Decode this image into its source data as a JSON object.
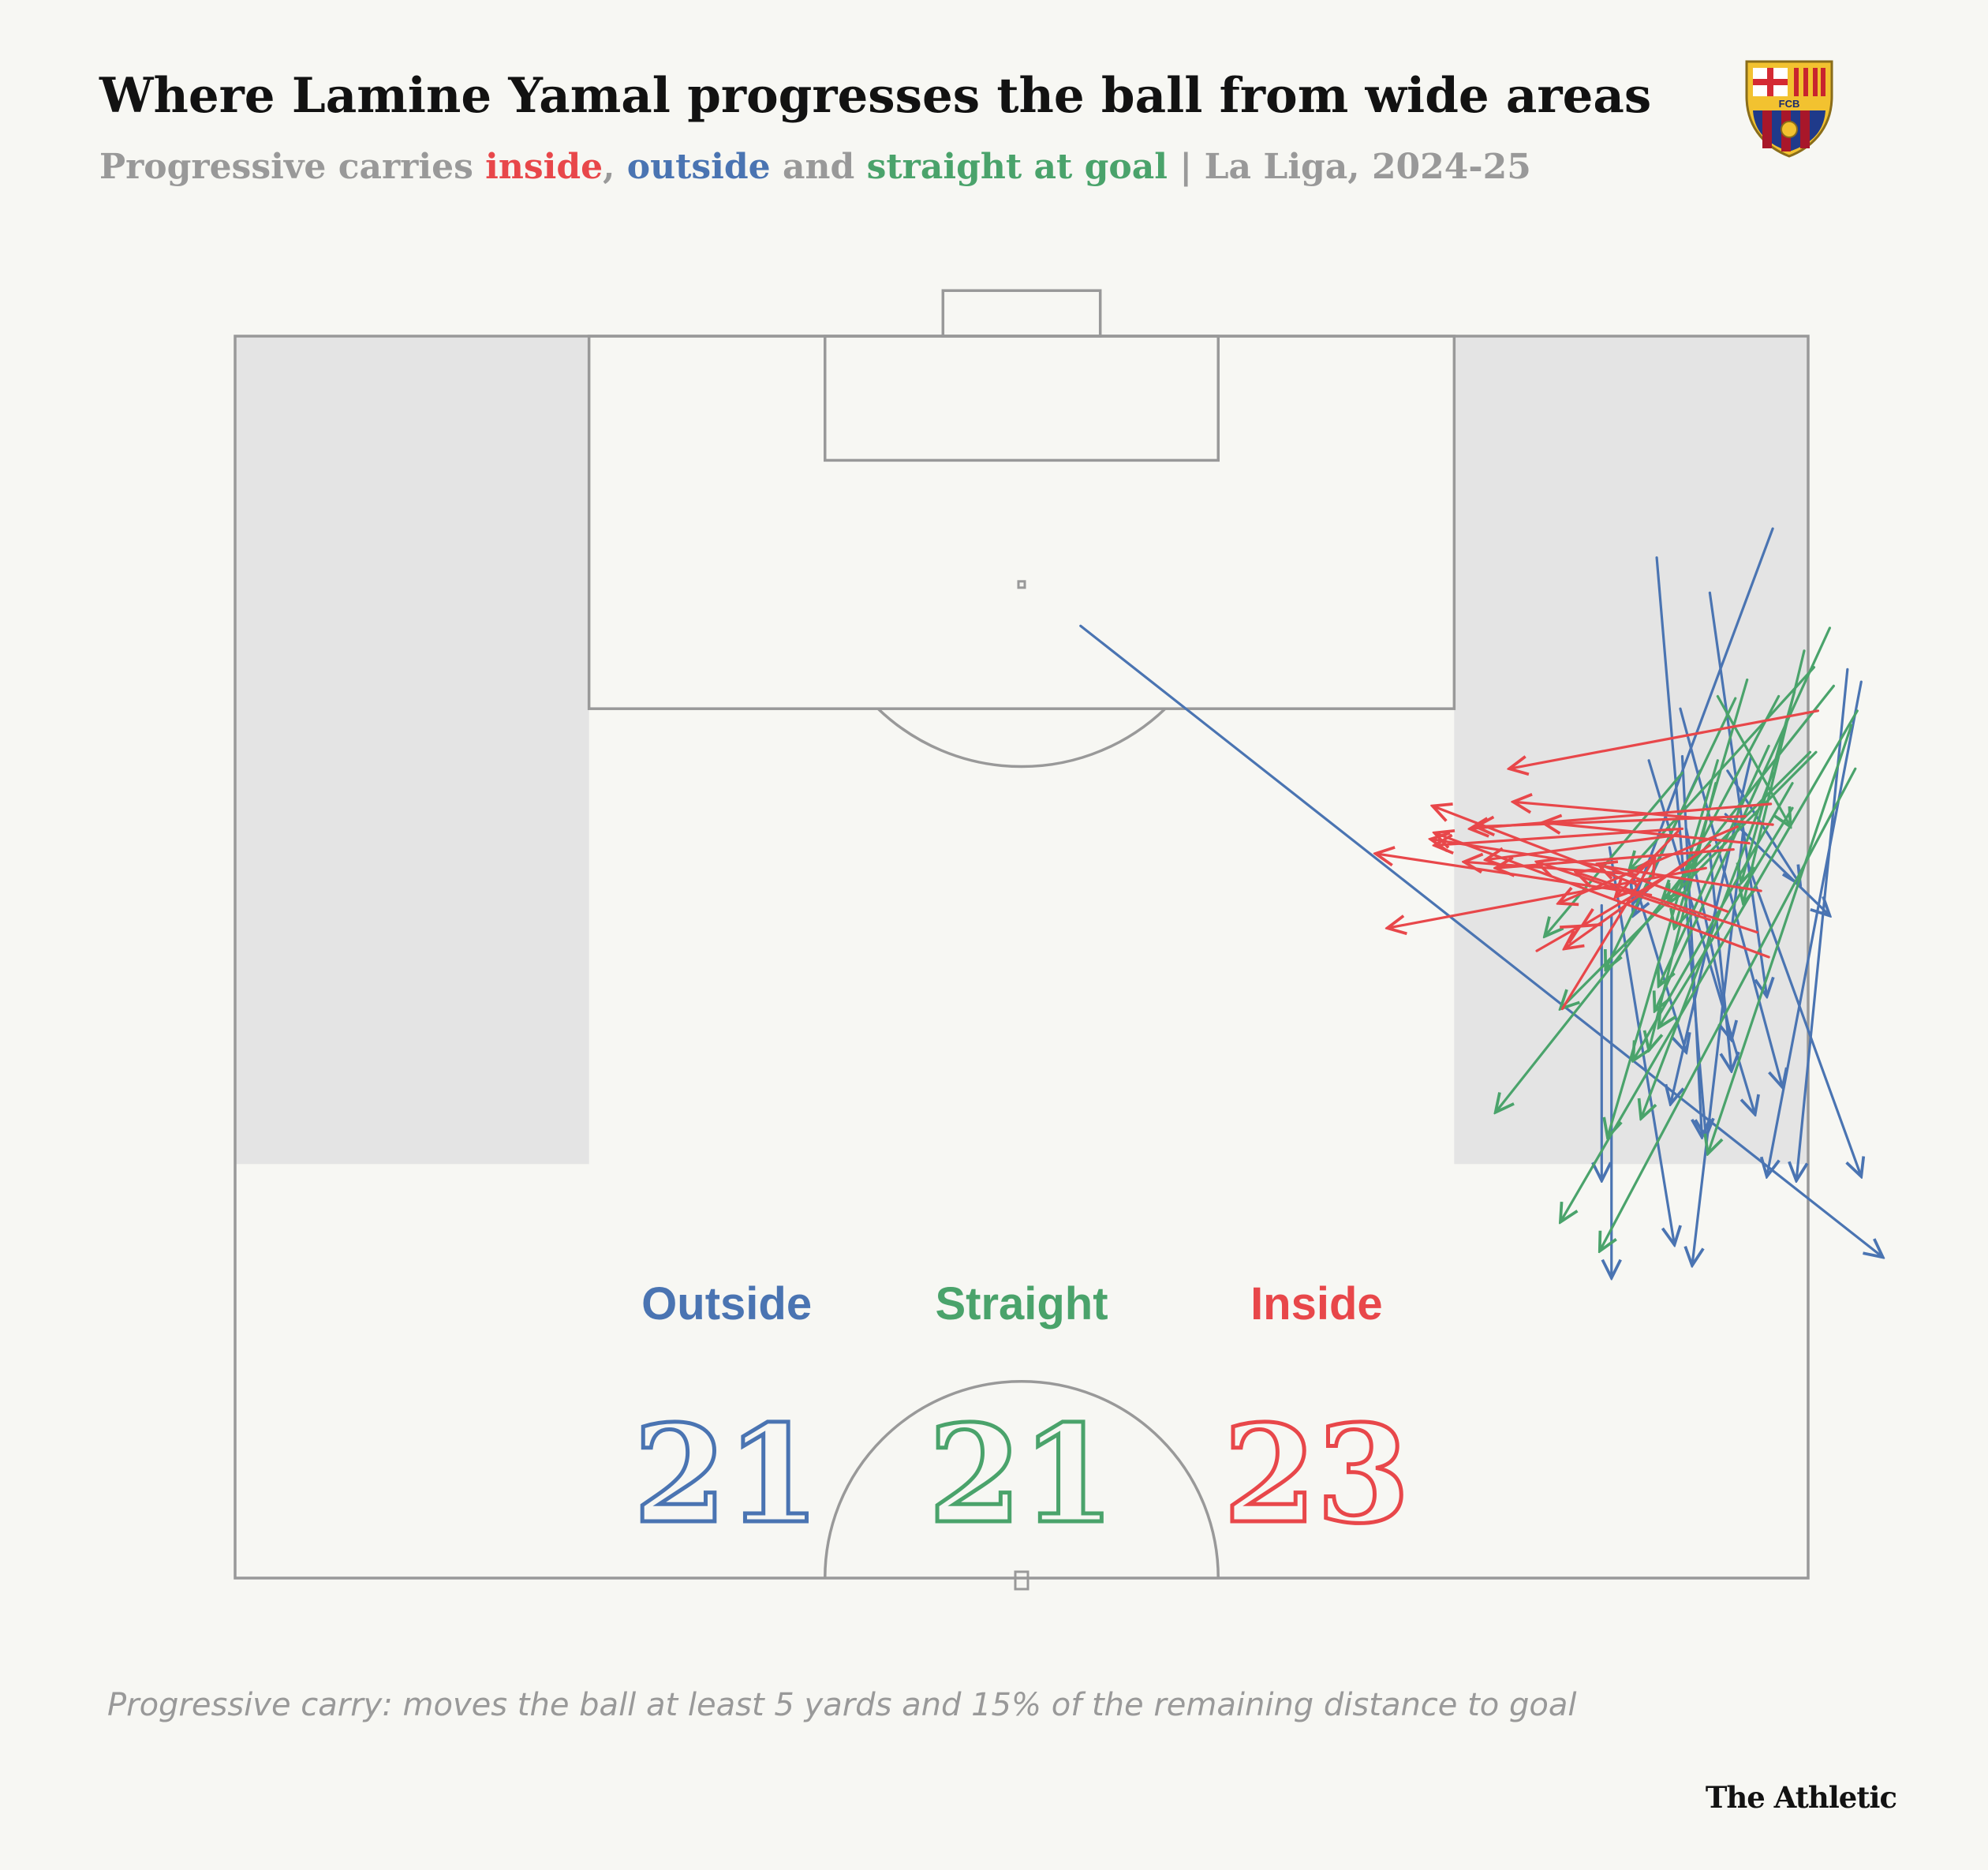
{
  "header": {
    "title": "Where Lamine Yamal progresses the ball from wide areas",
    "subtitle_parts": [
      {
        "text": "Progressive carries ",
        "color": "#999999"
      },
      {
        "text": "inside",
        "color": "#e8474a"
      },
      {
        "text": ", ",
        "color": "#999999"
      },
      {
        "text": "outside",
        "color": "#4a74b2"
      },
      {
        "text": " and ",
        "color": "#999999"
      },
      {
        "text": "straight at goal",
        "color": "#4aa36b"
      },
      {
        "text": " | La Liga, 2024-25",
        "color": "#999999"
      }
    ]
  },
  "crest": {
    "text": "FCB",
    "icon": "fc-barcelona-crest"
  },
  "colors": {
    "outside": "#4a74b2",
    "straight": "#4aa36b",
    "inside": "#e8474a",
    "pitch_line": "#999999",
    "wide_zone": "#e4e4e4",
    "background": "#f7f7f3"
  },
  "chart_data": {
    "type": "pitch-arrows",
    "units": "StatsBomb-style pitch, 120 x 80 (attacking top, right wing at y = 80)",
    "categories": [
      {
        "key": "outside",
        "label": "Outside",
        "count": "21"
      },
      {
        "key": "straight",
        "label": "Straight",
        "count": "21"
      },
      {
        "key": "inside",
        "label": "Inside",
        "count": "23"
      }
    ],
    "series": [
      {
        "key": "outside",
        "carries": [
          [
            [
              106.0,
              43.0
            ],
            [
              75.5,
              83.8
            ]
          ],
          [
            [
              107.6,
              75.0
            ],
            [
              88.1,
              77.9
            ]
          ],
          [
            [
              110.7,
              78.2
            ],
            [
              92.6,
              71.1
            ]
          ],
          [
            [
              99.0,
              75.9
            ],
            [
              93.5,
              79.6
            ]
          ],
          [
            [
              99.0,
              74.5
            ],
            [
              92.0,
              71.1
            ]
          ],
          [
            [
              92.0,
              70.0
            ],
            [
              74.5,
              70.0
            ]
          ],
          [
            [
              99.5,
              71.9
            ],
            [
              82.4,
              77.3
            ]
          ],
          [
            [
              96.2,
              73.8
            ],
            [
              86.0,
              76.1
            ]
          ],
          [
            [
              92.5,
              69.5
            ],
            [
              79.2,
              69.5
            ]
          ],
          [
            [
              95.3,
              69.9
            ],
            [
              76.1,
              73.2
            ]
          ],
          [
            [
              95.1,
              75.0
            ],
            [
              84.5,
              76.1
            ]
          ],
          [
            [
              96.1,
              76.7
            ],
            [
              75.1,
              74.1
            ]
          ],
          [
            [
              109.3,
              72.3
            ],
            [
              81.3,
              74.8
            ]
          ],
          [
            [
              94.2,
              71.0
            ],
            [
              85.4,
              73.8
            ]
          ],
          [
            [
              102.0,
              73.5
            ],
            [
              83.7,
              78.7
            ]
          ],
          [
            [
              94.6,
              76.9
            ],
            [
              79.4,
              82.7
            ]
          ],
          [
            [
              103.3,
              82.7
            ],
            [
              79.4,
              77.9
            ]
          ],
          [
            [
              103.9,
              82.0
            ],
            [
              79.2,
              79.4
            ]
          ],
          [
            [
              96.9,
              75.8
            ],
            [
              92.0,
              81.1
            ]
          ],
          [
            [
              99.7,
              77.1
            ],
            [
              82.9,
              73.0
            ]
          ],
          [
            [
              99.7,
              73.6
            ],
            [
              81.3,
              74.6
            ]
          ]
        ]
      },
      {
        "key": "straight",
        "carries": [
          [
            [
              99.1,
              82.4
            ],
            [
              75.8,
              69.4
            ]
          ],
          [
            [
              101.2,
              82.2
            ],
            [
              80.5,
              74.9
            ]
          ],
          [
            [
              99.5,
              75.4
            ],
            [
              81.3,
              69.8
            ]
          ],
          [
            [
              98.9,
              78.2
            ],
            [
              82.2,
              71.5
            ]
          ],
          [
            [
              98.4,
              79.2
            ],
            [
              85.0,
              71.1
            ]
          ],
          [
            [
              101.9,
              82.5
            ],
            [
              77.2,
              67.4
            ]
          ],
          [
            [
              99.9,
              80.4
            ],
            [
              87.5,
              67.4
            ]
          ],
          [
            [
              103.1,
              81.3
            ],
            [
              82.5,
              64.1
            ]
          ],
          [
            [
              102.5,
              76.3
            ],
            [
              89.4,
              69.7
            ]
          ],
          [
            [
              97.2,
              79.2
            ],
            [
              86.6,
              72.4
            ]
          ],
          [
            [
              102.6,
              78.5
            ],
            [
              92.6,
              72.9
            ]
          ],
          [
            [
              102.8,
              79.3
            ],
            [
              93.6,
              76.6
            ]
          ],
          [
            [
              99.9,
              80.1
            ],
            [
              92.8,
              72.6
            ]
          ],
          [
            [
              98.9,
              73.6
            ],
            [
              91.0,
              66.6
            ]
          ],
          [
            [
              98.4,
              75.3
            ],
            [
              85.5,
              71.9
            ]
          ],
          [
            [
              105.9,
              81.1
            ],
            [
              87.4,
              72.2
            ]
          ],
          [
            [
              103.4,
              76.9
            ],
            [
              91.4,
              73.2
            ]
          ],
          [
            [
              104.0,
              80.3
            ],
            [
              94.2,
              70.9
            ]
          ],
          [
            [
              102.6,
              75.4
            ],
            [
              96.3,
              79.1
            ]
          ],
          [
            [
              104.8,
              79.8
            ],
            [
              92.6,
              76.7
            ]
          ],
          [
            [
              100.2,
              78.0
            ],
            [
              88.6,
              72.4
            ]
          ]
        ]
      },
      {
        "key": "inside",
        "carries": [
          [
            [
              96.2,
              73.6
            ],
            [
              95.4,
              61.0
            ]
          ],
          [
            [
              101.9,
              80.5
            ],
            [
              99.1,
              64.8
            ]
          ],
          [
            [
              93.2,
              77.6
            ],
            [
              95.7,
              60.8
            ]
          ],
          [
            [
              97.4,
              78.1
            ],
            [
              96.2,
              62.8
            ]
          ],
          [
            [
              95.2,
              76.2
            ],
            [
              94.3,
              64.1
            ]
          ],
          [
            [
              95.9,
              73.4
            ],
            [
              94.7,
              63.6
            ]
          ],
          [
            [
              93.5,
              71.3
            ],
            [
              97.3,
              60.9
            ]
          ],
          [
            [
              96.4,
              78.2
            ],
            [
              97.5,
              65.0
            ]
          ],
          [
            [
              94.0,
              71.2
            ],
            [
              94.6,
              62.5
            ]
          ],
          [
            [
              91.2,
              77.4
            ],
            [
              94.1,
              68.2
            ]
          ],
          [
            [
              94.3,
              74.8
            ],
            [
              91.4,
              58.6
            ]
          ],
          [
            [
              94.5,
              73.8
            ],
            [
              91.5,
              68.5
            ]
          ],
          [
            [
              96.3,
              76.4
            ],
            [
              92.6,
              67.3
            ]
          ],
          [
            [
              96.8,
              76.8
            ],
            [
              96.3,
              63.1
            ]
          ],
          [
            [
              95.4,
              75.0
            ],
            [
              90.4,
              67.6
            ]
          ],
          [
            [
              87.5,
              67.5
            ],
            [
              94.8,
              72.2
            ]
          ],
          [
            [
              96.1,
              73.4
            ],
            [
              92.9,
              70.2
            ]
          ],
          [
            [
              92.2,
              75.9
            ],
            [
              94.5,
              69.3
            ]
          ],
          [
            [
              90.3,
              66.2
            ],
            [
              91.5,
              68.4
            ]
          ],
          [
            [
              91.8,
              75.0
            ],
            [
              94.6,
              66.2
            ]
          ],
          [
            [
              90.0,
              78.0
            ],
            [
              96.0,
              61.0
            ]
          ],
          [
            [
              93.0,
              72.0
            ],
            [
              95.0,
              58.0
            ]
          ],
          [
            [
              95.5,
              77.0
            ],
            [
              96.5,
              66.5
            ]
          ]
        ]
      }
    ],
    "title": "Where Lamine Yamal progresses the ball from wide areas"
  },
  "footnote": "Progressive carry: moves the ball at least 5 yards and 15% of the remaining distance to goal",
  "brand": "The Athletic"
}
